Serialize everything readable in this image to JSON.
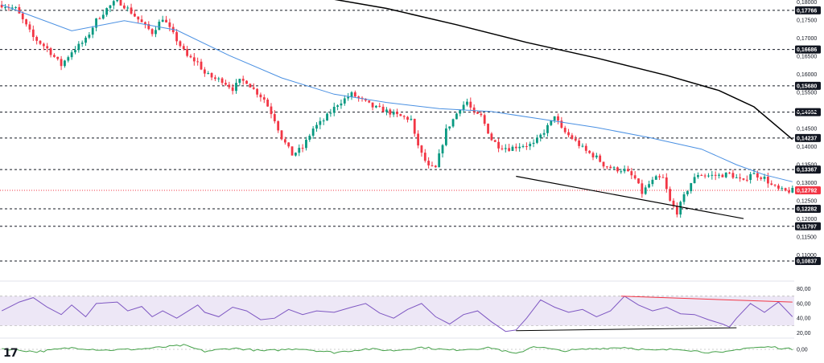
{
  "logo_text": "17",
  "colors": {
    "up": "#089981",
    "down": "#f23645",
    "ma_short": "#4a90e2",
    "ma_long": "#000000",
    "rsi_line": "#7e57c2",
    "rsi_band": "#ede7f6",
    "rsi_trend_high": "#f23645",
    "rsi_trend_low": "#000000",
    "osc_line": "#43a047",
    "level_line": "#131722",
    "price_badge": "#f23645",
    "level_badge": "#131722"
  },
  "chart_data": {
    "type": "candlestick",
    "title": "",
    "price_axis": {
      "ylim": [
        0.10727,
        0.18053
      ],
      "ticks": [
        "0,18000",
        "0,17500",
        "0,17000",
        "0,16500",
        "0,16000",
        "0,15500",
        "0,15000",
        "0,14500",
        "0,14000",
        "0,13500",
        "0,13000",
        "0,12500",
        "0,12000",
        "0,11500",
        "0,11000"
      ]
    },
    "horizontal_levels": [
      {
        "label": "0,17766",
        "value": 0.17766
      },
      {
        "label": "0,16686",
        "value": 0.16686
      },
      {
        "label": "0,15680",
        "value": 0.1568
      },
      {
        "label": "0,14952",
        "value": 0.14952
      },
      {
        "label": "0,14237",
        "value": 0.14237
      },
      {
        "label": "0,13367",
        "value": 0.13367
      },
      {
        "label": "0,12282",
        "value": 0.12282
      },
      {
        "label": "0,11797",
        "value": 0.11797
      },
      {
        "label": "0,10837",
        "value": 0.10837
      }
    ],
    "current_price": {
      "label": "0,12792",
      "value": 0.12792
    },
    "price_path": [
      [
        0,
        0.1792
      ],
      [
        4,
        0.1781
      ],
      [
        9,
        0.1702
      ],
      [
        13,
        0.1671
      ],
      [
        17,
        0.1625
      ],
      [
        20,
        0.1663
      ],
      [
        24,
        0.1695
      ],
      [
        27,
        0.1749
      ],
      [
        30,
        0.1781
      ],
      [
        33,
        0.1805
      ],
      [
        36,
        0.1781
      ],
      [
        40,
        0.1742
      ],
      [
        43,
        0.1715
      ],
      [
        46,
        0.1756
      ],
      [
        49,
        0.171
      ],
      [
        53,
        0.1649
      ],
      [
        56,
        0.1633
      ],
      [
        58,
        0.1602
      ],
      [
        61,
        0.1587
      ],
      [
        63,
        0.1583
      ],
      [
        66,
        0.156
      ],
      [
        68,
        0.1581
      ],
      [
        70,
        0.158
      ],
      [
        72,
        0.1558
      ],
      [
        75,
        0.1531
      ],
      [
        78,
        0.1475
      ],
      [
        80,
        0.1425
      ],
      [
        83,
        0.1378
      ],
      [
        86,
        0.1397
      ],
      [
        89,
        0.145
      ],
      [
        92,
        0.1473
      ],
      [
        96,
        0.1518
      ],
      [
        100,
        0.1545
      ],
      [
        103,
        0.1528
      ],
      [
        106,
        0.151
      ],
      [
        110,
        0.1498
      ],
      [
        113,
        0.1486
      ],
      [
        117,
        0.1475
      ],
      [
        118,
        0.143
      ],
      [
        120,
        0.1379
      ],
      [
        122,
        0.1343
      ],
      [
        124,
        0.134
      ],
      [
        127,
        0.1445
      ],
      [
        129,
        0.1475
      ],
      [
        131,
        0.1508
      ],
      [
        133,
        0.1524
      ],
      [
        135,
        0.1489
      ],
      [
        137,
        0.1484
      ],
      [
        140,
        0.142
      ],
      [
        142,
        0.1402
      ],
      [
        145,
        0.1395
      ],
      [
        148,
        0.1403
      ],
      [
        152,
        0.1406
      ],
      [
        155,
        0.1442
      ],
      [
        157,
        0.1468
      ],
      [
        158,
        0.1488
      ],
      [
        160,
        0.1447
      ],
      [
        163,
        0.1423
      ],
      [
        167,
        0.1387
      ],
      [
        170,
        0.137
      ],
      [
        172,
        0.135
      ],
      [
        175,
        0.1338
      ],
      [
        178,
        0.1335
      ],
      [
        181,
        0.1311
      ],
      [
        183,
        0.1272
      ],
      [
        185,
        0.1296
      ],
      [
        187,
        0.1312
      ],
      [
        189,
        0.1312
      ],
      [
        191,
        0.1248
      ],
      [
        193,
        0.1219
      ],
      [
        195,
        0.1262
      ],
      [
        197,
        0.13
      ],
      [
        199,
        0.1324
      ],
      [
        202,
        0.132
      ],
      [
        205,
        0.132
      ],
      [
        208,
        0.1325
      ],
      [
        210,
        0.1313
      ],
      [
        212,
        0.1302
      ],
      [
        214,
        0.1327
      ],
      [
        216,
        0.132
      ],
      [
        218,
        0.1313
      ],
      [
        220,
        0.1293
      ],
      [
        222,
        0.1281
      ],
      [
        224,
        0.1276
      ],
      [
        226,
        0.1279
      ]
    ],
    "ma_short_path": [
      [
        0,
        0.1792
      ],
      [
        20,
        0.172
      ],
      [
        35,
        0.1748
      ],
      [
        50,
        0.1722
      ],
      [
        65,
        0.1652
      ],
      [
        80,
        0.159
      ],
      [
        95,
        0.1545
      ],
      [
        110,
        0.1522
      ],
      [
        125,
        0.1505
      ],
      [
        140,
        0.1497
      ],
      [
        155,
        0.1475
      ],
      [
        170,
        0.1453
      ],
      [
        185,
        0.1425
      ],
      [
        200,
        0.1393
      ],
      [
        210,
        0.135
      ],
      [
        218,
        0.1322
      ],
      [
        226,
        0.1303
      ]
    ],
    "ma_long_path": [
      [
        95,
        0.1807
      ],
      [
        110,
        0.1782
      ],
      [
        130,
        0.1737
      ],
      [
        150,
        0.1688
      ],
      [
        170,
        0.1645
      ],
      [
        190,
        0.1597
      ],
      [
        205,
        0.1555
      ],
      [
        215,
        0.151
      ],
      [
        226,
        0.142
      ]
    ],
    "price_trendline": [
      [
        147,
        0.1318
      ],
      [
        212,
        0.1201
      ]
    ],
    "rsi": {
      "axis_ticks": [
        "80,00",
        "60,00",
        "40,00",
        "20,00"
      ],
      "ylim": [
        14,
        84
      ],
      "band": [
        30,
        70
      ],
      "path": [
        [
          0,
          50
        ],
        [
          5,
          62
        ],
        [
          9,
          68
        ],
        [
          13,
          55
        ],
        [
          17,
          45
        ],
        [
          20,
          58
        ],
        [
          24,
          42
        ],
        [
          27,
          60
        ],
        [
          33,
          62
        ],
        [
          36,
          50
        ],
        [
          40,
          56
        ],
        [
          43,
          42
        ],
        [
          46,
          50
        ],
        [
          50,
          40
        ],
        [
          56,
          58
        ],
        [
          58,
          48
        ],
        [
          62,
          42
        ],
        [
          66,
          55
        ],
        [
          70,
          50
        ],
        [
          74,
          38
        ],
        [
          78,
          40
        ],
        [
          82,
          52
        ],
        [
          86,
          45
        ],
        [
          90,
          50
        ],
        [
          95,
          48
        ],
        [
          100,
          55
        ],
        [
          104,
          60
        ],
        [
          108,
          47
        ],
        [
          112,
          40
        ],
        [
          116,
          52
        ],
        [
          120,
          60
        ],
        [
          124,
          42
        ],
        [
          128,
          32
        ],
        [
          132,
          45
        ],
        [
          136,
          50
        ],
        [
          140,
          35
        ],
        [
          144,
          22
        ],
        [
          147,
          24
        ],
        [
          150,
          40
        ],
        [
          154,
          65
        ],
        [
          158,
          55
        ],
        [
          162,
          48
        ],
        [
          166,
          52
        ],
        [
          170,
          42
        ],
        [
          174,
          50
        ],
        [
          178,
          70
        ],
        [
          182,
          58
        ],
        [
          186,
          50
        ],
        [
          190,
          55
        ],
        [
          194,
          46
        ],
        [
          198,
          45
        ],
        [
          202,
          38
        ],
        [
          206,
          32
        ],
        [
          208,
          28
        ],
        [
          210,
          40
        ],
        [
          214,
          60
        ],
        [
          218,
          48
        ],
        [
          222,
          62
        ],
        [
          226,
          42
        ]
      ],
      "trendline_high": [
        [
          177,
          70
        ],
        [
          226,
          62
        ]
      ],
      "trendline_low": [
        [
          147,
          23
        ],
        [
          210,
          27
        ]
      ]
    },
    "oscillator": {
      "axis_ticks": [
        "0,00"
      ],
      "path": [
        [
          0,
          0.2
        ],
        [
          10,
          -0.6
        ],
        [
          20,
          0.4
        ],
        [
          30,
          -0.2
        ],
        [
          40,
          0.1
        ],
        [
          52,
          1.0
        ],
        [
          58,
          -0.5
        ],
        [
          66,
          0.3
        ],
        [
          75,
          -0.4
        ],
        [
          85,
          0.2
        ],
        [
          95,
          -0.8
        ],
        [
          104,
          0.1
        ],
        [
          112,
          -0.3
        ],
        [
          120,
          0.5
        ],
        [
          128,
          -0.2
        ],
        [
          140,
          0.4
        ],
        [
          147,
          -1.2
        ],
        [
          152,
          0.8
        ],
        [
          160,
          -0.4
        ],
        [
          170,
          0.2
        ],
        [
          178,
          0.5
        ],
        [
          186,
          -0.3
        ],
        [
          194,
          0.1
        ],
        [
          200,
          -0.6
        ],
        [
          206,
          -0.9
        ],
        [
          212,
          0.3
        ],
        [
          220,
          0.6
        ],
        [
          226,
          0.0
        ]
      ]
    }
  }
}
